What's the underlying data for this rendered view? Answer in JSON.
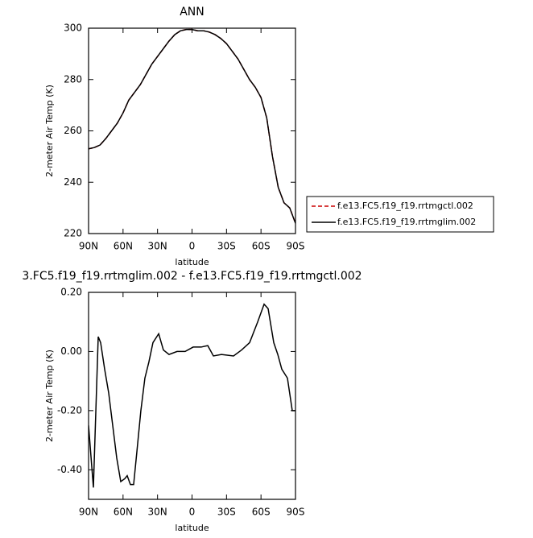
{
  "chart_data": [
    {
      "type": "line",
      "title": "ANN",
      "x_label": "latitude",
      "y_label": "2-meter Air Temp (K)",
      "x": [
        90,
        85,
        80,
        75,
        70,
        65,
        60,
        55,
        50,
        45,
        40,
        35,
        30,
        25,
        20,
        15,
        10,
        5,
        0,
        -5,
        -10,
        -15,
        -20,
        -25,
        -30,
        -35,
        -40,
        -45,
        -50,
        -55,
        -60,
        -65,
        -70,
        -75,
        -80,
        -85,
        -90
      ],
      "series": [
        {
          "name": "f.e13.FC5.f19_f19.rrtmgctl.002",
          "color": "#cc0000",
          "linestyle": "dashed",
          "values": [
            253,
            253.5,
            254.5,
            257,
            260,
            263,
            267,
            272,
            275,
            278,
            282,
            286,
            289,
            292,
            295,
            297.5,
            299,
            299.5,
            299.5,
            299,
            299,
            298.5,
            297.5,
            296,
            294,
            291,
            288,
            284,
            280,
            277,
            273,
            265,
            250,
            238,
            232,
            230,
            224
          ]
        },
        {
          "name": "f.e13.FC5.f19_f19.rrtmglim.002",
          "color": "#000000",
          "linestyle": "solid",
          "values": [
            253,
            253.5,
            254.5,
            257,
            260,
            263,
            267,
            272,
            275,
            278,
            282,
            286,
            289,
            292,
            295,
            297.5,
            299,
            299.5,
            299.5,
            299,
            299,
            298.5,
            297.5,
            296,
            294,
            291,
            288,
            284,
            280,
            277,
            273,
            265,
            250,
            238,
            232,
            230,
            224
          ]
        }
      ],
      "xlim": [
        90,
        -90
      ],
      "xticks": [
        {
          "value": 90,
          "label": "90N"
        },
        {
          "value": 60,
          "label": "60N"
        },
        {
          "value": 30,
          "label": "30N"
        },
        0,
        {
          "value": -30,
          "label": "30S"
        },
        {
          "value": -60,
          "label": "60S"
        },
        {
          "value": -90,
          "label": "90S"
        }
      ],
      "ylim": [
        220,
        300
      ],
      "yticks": [
        220,
        240,
        260,
        280,
        300
      ],
      "legend": "right"
    },
    {
      "type": "line",
      "title": "3.FC5.f19_f19.rrtmglim.002 - f.e13.FC5.f19_f19.rrtmgctl.002",
      "x_label": "latitude",
      "y_label": "2-meter Air Temp (K)",
      "x": [
        90,
        85.8,
        81.6,
        79.5,
        76,
        72.5,
        69,
        65.5,
        62,
        58.5,
        56.4,
        53.6,
        50.8,
        48,
        44.5,
        41,
        37.5,
        34,
        29,
        24.9,
        20,
        13,
        6,
        -1,
        -8,
        -13.7,
        -18.6,
        -25.6,
        -36.1,
        -43.1,
        -50.1,
        -57.1,
        -62.7,
        -66.2,
        -71.1,
        -74.6,
        -78.1,
        -83,
        -87.2,
        -90
      ],
      "values": [
        -0.25,
        -0.46,
        0.05,
        0.03,
        -0.06,
        -0.14,
        -0.25,
        -0.36,
        -0.44,
        -0.43,
        -0.42,
        -0.45,
        -0.45,
        -0.34,
        -0.2,
        -0.09,
        -0.035,
        0.03,
        0.06,
        0.005,
        -0.01,
        0,
        0,
        0.015,
        0.015,
        0.02,
        -0.015,
        -0.01,
        -0.015,
        0.005,
        0.03,
        0.1,
        0.16,
        0.145,
        0.03,
        -0.01,
        -0.06,
        -0.09,
        -0.2,
        -0.2
      ],
      "color": "#000000",
      "xlim": [
        90,
        -90
      ],
      "xticks": [
        {
          "value": 90,
          "label": "90N"
        },
        {
          "value": 60,
          "label": "60N"
        },
        {
          "value": 30,
          "label": "30N"
        },
        0,
        {
          "value": -30,
          "label": "30S"
        },
        {
          "value": -60,
          "label": "60S"
        },
        {
          "value": -90,
          "label": "90S"
        }
      ],
      "ylim": [
        -0.5,
        0.2
      ],
      "yticks": [
        {
          "value": -0.4,
          "label": "-0.40"
        },
        {
          "value": -0.2,
          "label": "-0.20"
        },
        {
          "value": 0,
          "label": "0.00"
        },
        {
          "value": 0.2,
          "label": "0.20"
        }
      ]
    }
  ]
}
